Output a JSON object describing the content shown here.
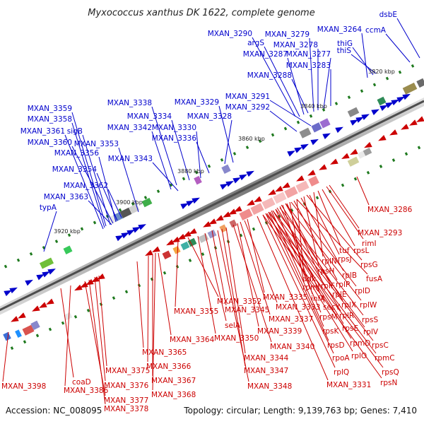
{
  "title": "Myxococcus xanthus DK 1622, complete genome",
  "footer": {
    "accession": "Accession: NC_008095",
    "summary": "Topology: circular; Length: 9,139,763 bp; Genes: 7,410"
  },
  "colors": {
    "forward": "#0000cc",
    "reverse": "#cc0000",
    "axis_dark": "#555555",
    "axis_light": "#dddddd",
    "gc_mark": "#1f7a1f"
  },
  "ticks": [
    "3820 kbp",
    "3840 kbp",
    "3860 kbp",
    "3880 kbp",
    "3900 kbp",
    "3920 kbp"
  ],
  "forward_genes": [
    "MXAN_3290",
    "argS",
    "MXAN_3287",
    "MXAN_3279",
    "MXAN_3278",
    "MXAN_3277",
    "MXAN_3283",
    "MXAN_3288",
    "MXAN_3264",
    "thiG",
    "thiS",
    "ccmA",
    "dsbE",
    "MXAN_3291",
    "MXAN_3292",
    "MXAN_3329",
    "MXAN_3328",
    "MXAN_3338",
    "MXAN_3334",
    "MXAN_3342",
    "MXAN_3330",
    "MXAN_3336",
    "MXAN_3343",
    "MXAN_3359",
    "MXAN_3358",
    "MXAN_3361",
    "sigB",
    "MXAN_3360",
    "MXAN_3353",
    "MXAN_3356",
    "MXAN_3354",
    "MXAN_3362",
    "MXAN_3363",
    "typA"
  ],
  "reverse_genes": [
    "MXAN_3286",
    "MXAN_3293",
    "rimI",
    "rpsL",
    "tuf",
    "rplN",
    "rpsJ",
    "rpsG",
    "rpsH",
    "rplB",
    "adk",
    "rplP",
    "fusA",
    "rpmJ",
    "rplF",
    "rplD",
    "infA",
    "rplE",
    "secY",
    "rplX",
    "rplW",
    "rpsM",
    "rplR",
    "rpsS",
    "rpsK",
    "rpsE",
    "rplV",
    "rpsD",
    "rpmD",
    "rpsC",
    "rpoA",
    "rplO",
    "rpmC",
    "rplQ",
    "rpsQ",
    "MXAN_3331",
    "rpsN",
    "MXAN_3352",
    "MXAN_3335",
    "MXAN_3355",
    "MXAN_3345",
    "MXAN_3333",
    "MXAN_3337",
    "selA",
    "MXAN_3339",
    "MXAN_3364",
    "MXAN_3350",
    "MXAN_3340",
    "MXAN_3344",
    "MXAN_3365",
    "MXAN_3347",
    "MXAN_3366",
    "MXAN_3348",
    "MXAN_3375",
    "MXAN_3367",
    "coaD",
    "MXAN_3376",
    "MXAN_3386",
    "MXAN_3368",
    "MXAN_3377",
    "MXAN_3378",
    "MXAN_3398"
  ]
}
